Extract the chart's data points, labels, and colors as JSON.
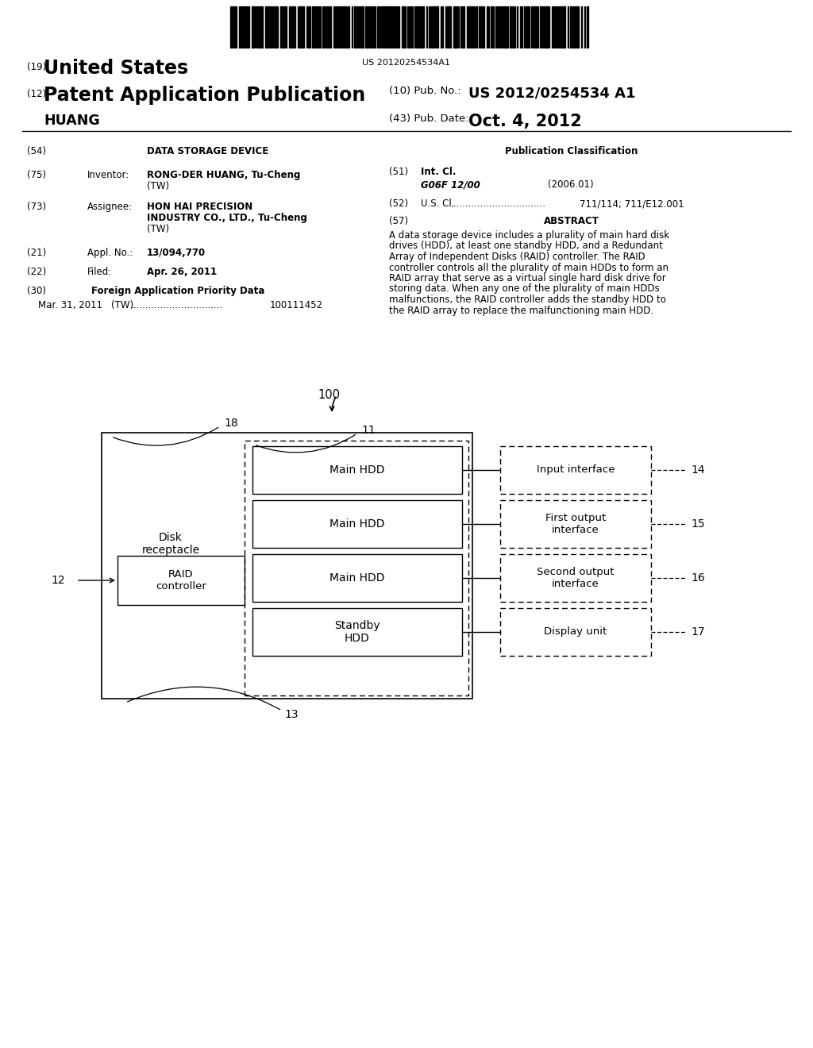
{
  "bg_color": "#ffffff",
  "barcode_text": "US 20120254534A1",
  "title_19_prefix": "(19)",
  "title_19_text": "United States",
  "title_12_prefix": "(12)",
  "title_12_text": "Patent Application Publication",
  "pub_no_label": "(10) Pub. No.:",
  "pub_no_value": "US 2012/0254534 A1",
  "inventor_name": "HUANG",
  "pub_date_label": "(43) Pub. Date:",
  "pub_date_value": "Oct. 4, 2012",
  "field_54_label": "(54)",
  "field_54_text": "DATA STORAGE DEVICE",
  "field_75_label": "(75)",
  "field_75_key": "Inventor:",
  "field_75_line1": "RONG-DER HUANG, Tu-Cheng",
  "field_75_line2": "(TW)",
  "field_73_label": "(73)",
  "field_73_key": "Assignee:",
  "field_73_line1": "HON HAI PRECISION",
  "field_73_line2": "INDUSTRY CO., LTD., Tu-Cheng",
  "field_73_line3": "(TW)",
  "field_21_label": "(21)",
  "field_21_key": "Appl. No.:",
  "field_21_value": "13/094,770",
  "field_22_label": "(22)",
  "field_22_key": "Filed:",
  "field_22_value": "Apr. 26, 2011",
  "field_30_label": "(30)",
  "field_30_key": "Foreign Application Priority Data",
  "field_30_date": "Mar. 31, 2011",
  "field_30_country": "(TW)",
  "field_30_dots": "...............................",
  "field_30_number": "100111452",
  "pub_class_title": "Publication Classification",
  "field_51_label": "(51)",
  "field_51_key": "Int. Cl.",
  "field_51_subkey": "G06F 12/00",
  "field_51_year": "(2006.01)",
  "field_52_label": "(52)",
  "field_52_key": "U.S. Cl.",
  "field_52_dots": "................................",
  "field_52_value": "711/114; 711/E12.001",
  "field_57_label": "(57)",
  "field_57_key": "ABSTRACT",
  "abstract_lines": [
    "A data storage device includes a plurality of main hard disk",
    "drives (HDD), at least one standby HDD, and a Redundant",
    "Array of Independent Disks (RAID) controller. The RAID",
    "controller controls all the plurality of main HDDs to form an",
    "RAID array that serve as a virtual single hard disk drive for",
    "storing data. When any one of the plurality of main HDDs",
    "malfunctions, the RAID controller adds the standby HDD to",
    "the RAID array to replace the malfunctioning main HDD."
  ],
  "diagram_label_100": "100",
  "diagram_label_18": "18",
  "diagram_label_11": "11",
  "diagram_label_12": "12",
  "diagram_label_13": "13",
  "diagram_label_14": "14",
  "diagram_label_15": "15",
  "diagram_label_16": "16",
  "diagram_label_17": "17",
  "box_disk_receptacle": "Disk\nreceptacle",
  "box_raid_controller": "RAID\ncontroller",
  "box_main_hdd1": "Main HDD",
  "box_main_hdd2": "Main HDD",
  "box_main_hdd3": "Main HDD",
  "box_standby_hdd": "Standby\nHDD",
  "box_input_interface": "Input interface",
  "box_first_output": "First output\ninterface",
  "box_second_output": "Second output\ninterface",
  "box_display_unit": "Display unit"
}
